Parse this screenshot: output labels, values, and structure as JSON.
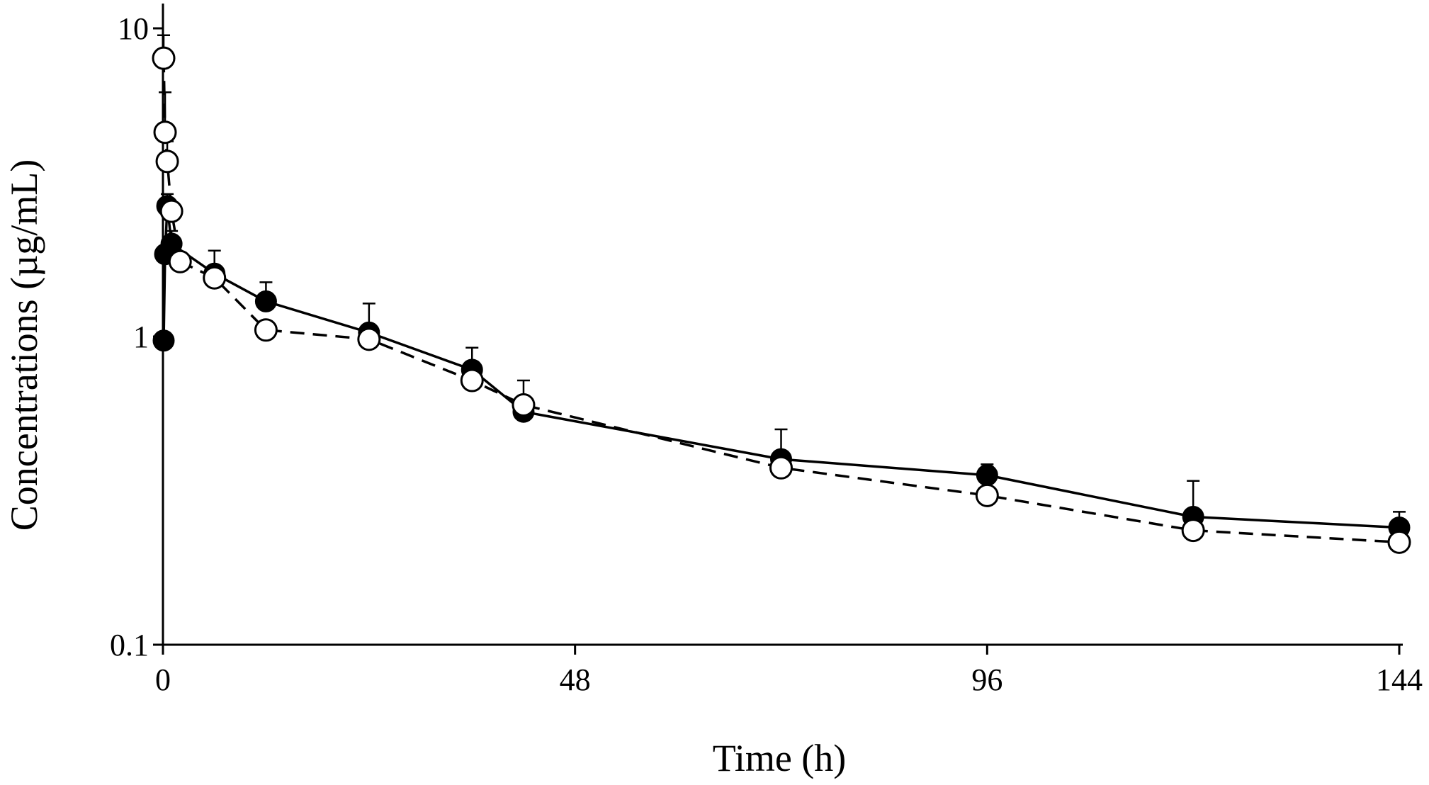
{
  "chart_data": {
    "type": "line",
    "xlabel": "Time (h)",
    "ylabel": "Concentrations (µg/mL)",
    "xlim": [
      0,
      144
    ],
    "ylim": [
      0.1,
      10
    ],
    "y_scale": "log",
    "grid": false,
    "x_ticks": [
      {
        "value": 0,
        "label": "0"
      },
      {
        "value": 48,
        "label": "48"
      },
      {
        "value": 96,
        "label": "96"
      },
      {
        "value": 144,
        "label": "144"
      }
    ],
    "y_ticks": [
      {
        "value": 0.1,
        "label": "0.1"
      },
      {
        "value": 1,
        "label": "1"
      },
      {
        "value": 10,
        "label": "10"
      }
    ],
    "series": [
      {
        "marker": "filled-circle",
        "line": "solid",
        "color": "#000000",
        "x": [
          0.083,
          0.25,
          0.5,
          1,
          6,
          12,
          24,
          36,
          42,
          72,
          96,
          120,
          144
        ],
        "y": [
          0.97,
          1.85,
          2.65,
          2.0,
          1.6,
          1.3,
          1.03,
          0.78,
          0.57,
          0.4,
          0.355,
          0.26,
          0.24
        ],
        "error_upper": [
          null,
          null,
          2.9,
          2.2,
          1.9,
          1.5,
          1.28,
          0.92,
          0.72,
          0.5,
          0.385,
          0.34,
          0.27
        ]
      },
      {
        "marker": "open-circle",
        "line": "dashed",
        "color": "#000000",
        "x": [
          0.083,
          0.25,
          0.5,
          1,
          2,
          6,
          12,
          24,
          36,
          42,
          72,
          96,
          120,
          144
        ],
        "y": [
          8.0,
          4.6,
          3.7,
          2.55,
          1.75,
          1.55,
          1.05,
          0.98,
          0.72,
          0.6,
          0.375,
          0.305,
          0.235,
          0.215
        ],
        "error_upper": [
          9.5,
          6.2,
          4.3,
          null,
          null,
          null,
          null,
          null,
          null,
          null,
          null,
          null,
          null,
          null
        ]
      }
    ]
  }
}
